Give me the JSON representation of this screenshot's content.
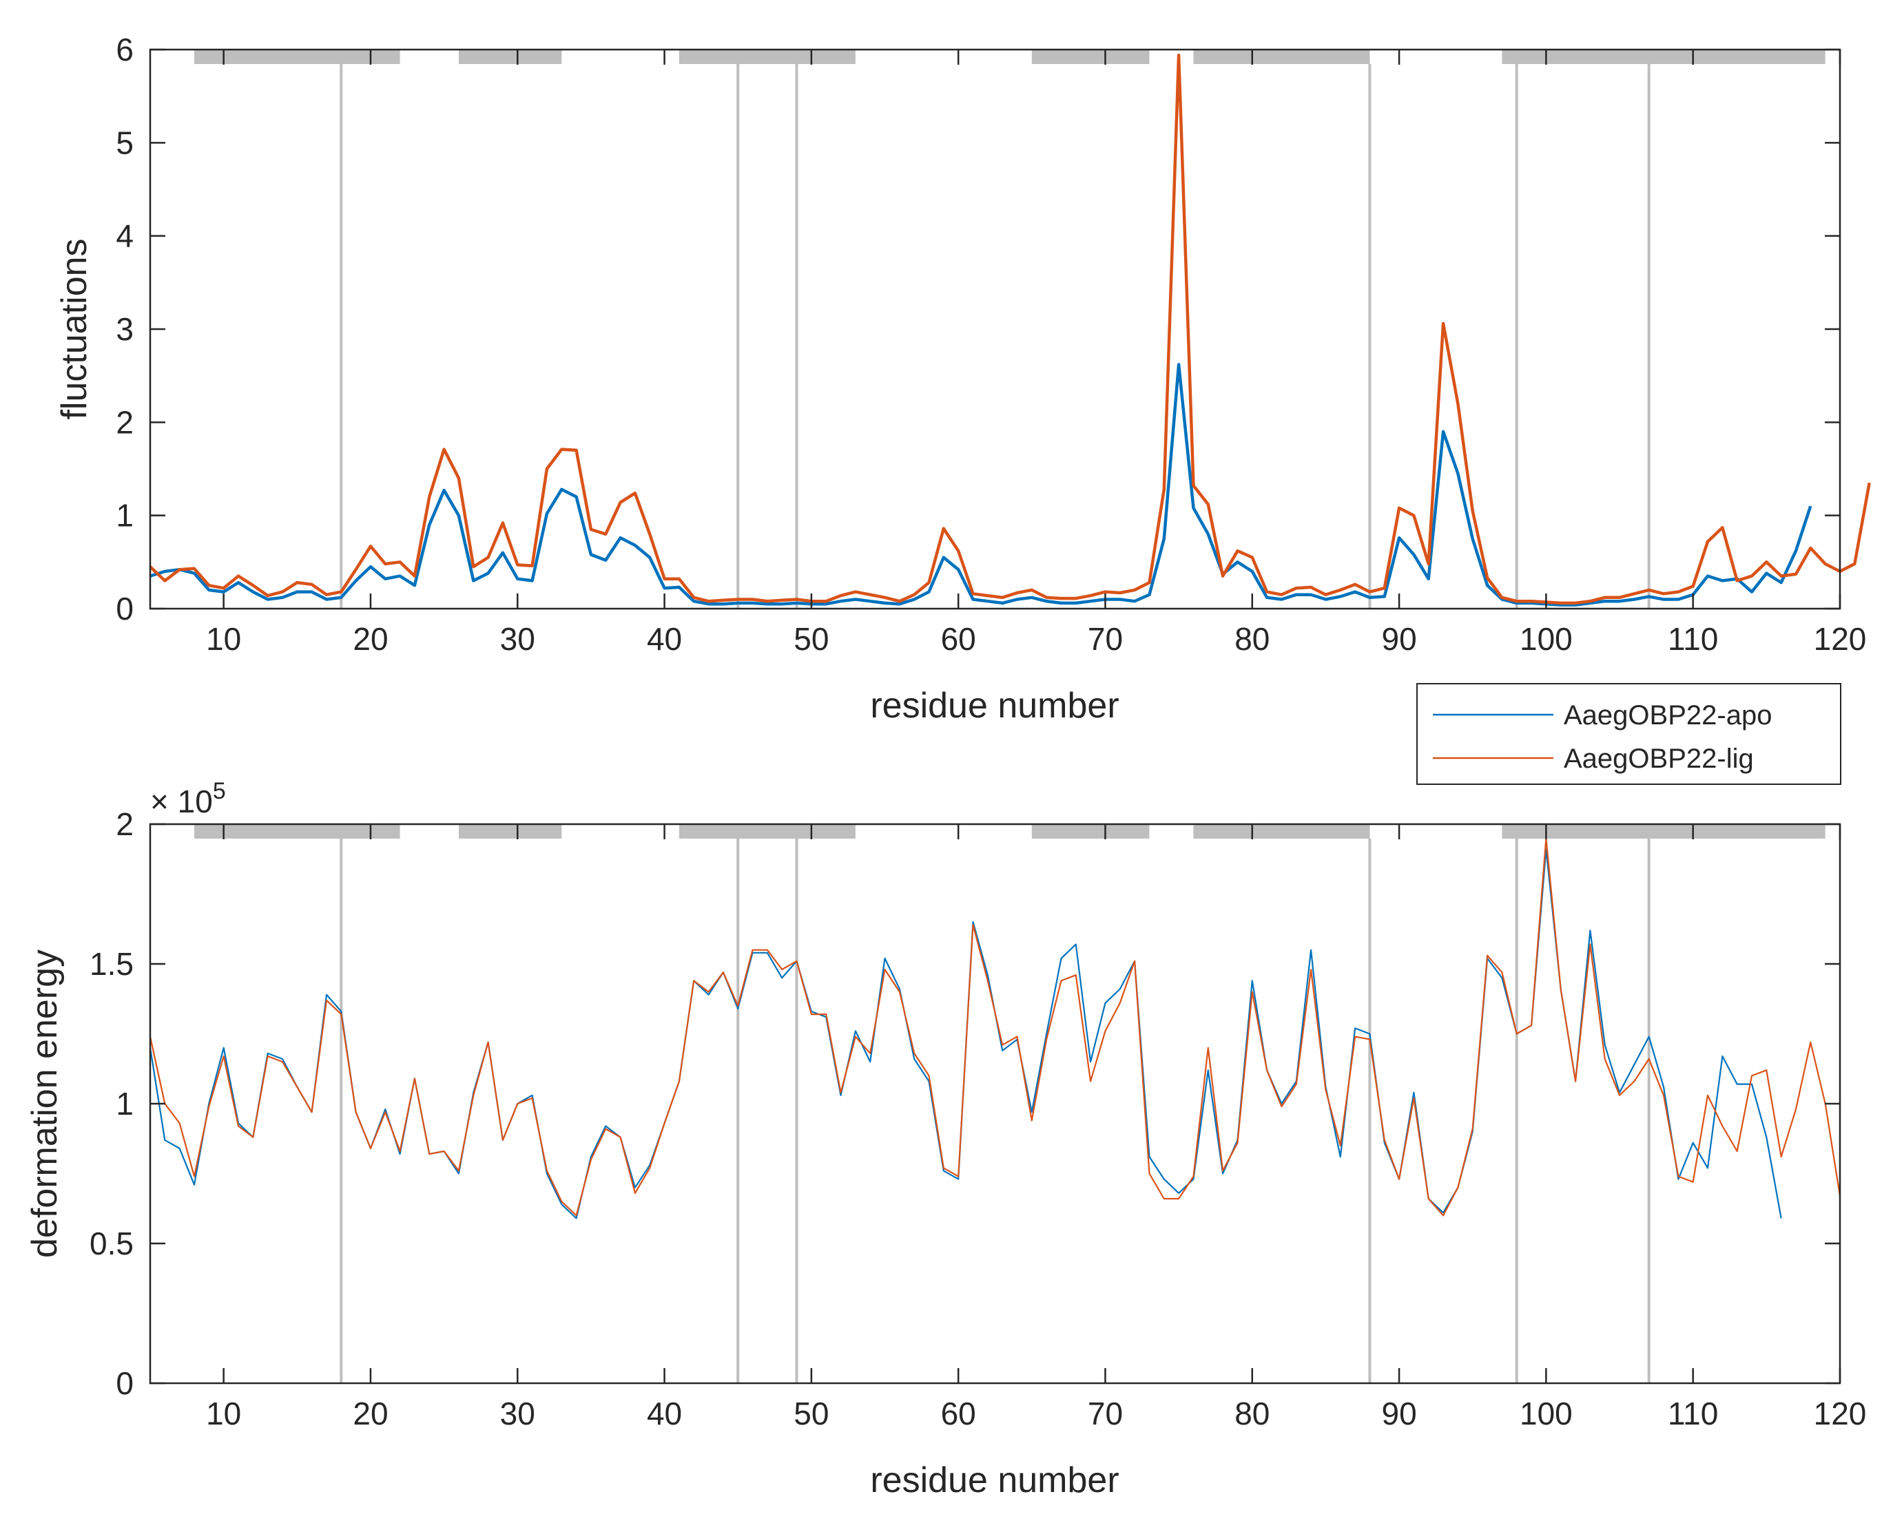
{
  "chart_data": [
    {
      "type": "line",
      "panel": "top",
      "title": "",
      "xlabel": "residue number",
      "ylabel": "fluctuations",
      "xlim": [
        5,
        120
      ],
      "ylim": [
        0,
        6
      ],
      "xticks": [
        10,
        20,
        30,
        40,
        50,
        60,
        70,
        80,
        90,
        100,
        110,
        120
      ],
      "yticks": [
        0,
        1,
        2,
        3,
        4,
        5,
        6
      ],
      "secondary_structure_bars": [
        [
          8,
          22
        ],
        [
          26,
          33
        ],
        [
          41,
          53
        ],
        [
          65,
          73
        ],
        [
          76,
          88
        ],
        [
          97,
          119
        ]
      ],
      "vertical_reference_lines": [
        18,
        45,
        49,
        88,
        98,
        107
      ],
      "series": [
        {
          "name": "AaegOBP22-apo",
          "color": "#0072BD",
          "x_start": 5,
          "values": [
            0.35,
            0.4,
            0.42,
            0.38,
            0.2,
            0.18,
            0.28,
            0.18,
            0.1,
            0.12,
            0.18,
            0.18,
            0.1,
            0.12,
            0.3,
            0.45,
            0.32,
            0.35,
            0.25,
            0.9,
            1.27,
            1.0,
            0.3,
            0.38,
            0.6,
            0.32,
            0.3,
            1.02,
            1.28,
            1.2,
            0.58,
            0.52,
            0.76,
            0.68,
            0.55,
            0.22,
            0.23,
            0.08,
            0.05,
            0.05,
            0.06,
            0.06,
            0.05,
            0.05,
            0.06,
            0.05,
            0.05,
            0.08,
            0.1,
            0.08,
            0.06,
            0.05,
            0.1,
            0.18,
            0.55,
            0.42,
            0.1,
            0.08,
            0.06,
            0.1,
            0.12,
            0.08,
            0.06,
            0.06,
            0.08,
            0.1,
            0.1,
            0.08,
            0.15,
            0.75,
            2.62,
            1.08,
            0.8,
            0.37,
            0.5,
            0.4,
            0.12,
            0.1,
            0.15,
            0.15,
            0.1,
            0.13,
            0.18,
            0.12,
            0.13,
            0.76,
            0.58,
            0.32,
            1.9,
            1.45,
            0.75,
            0.25,
            0.1,
            0.06,
            0.06,
            0.05,
            0.04,
            0.04,
            0.06,
            0.08,
            0.08,
            0.1,
            0.13,
            0.1,
            0.1,
            0.15,
            0.35,
            0.3,
            0.32,
            0.18,
            0.38,
            0.28,
            0.62,
            1.1
          ]
        },
        {
          "name": "AaegOBP22-lig",
          "color": "#D95319",
          "x_start": 5,
          "values": [
            0.45,
            0.3,
            0.42,
            0.43,
            0.25,
            0.22,
            0.35,
            0.25,
            0.14,
            0.18,
            0.28,
            0.26,
            0.15,
            0.18,
            0.42,
            0.67,
            0.48,
            0.5,
            0.35,
            1.2,
            1.71,
            1.4,
            0.45,
            0.55,
            0.92,
            0.47,
            0.46,
            1.5,
            1.71,
            1.7,
            0.85,
            0.8,
            1.14,
            1.24,
            0.8,
            0.32,
            0.32,
            0.12,
            0.08,
            0.09,
            0.1,
            0.1,
            0.08,
            0.09,
            0.1,
            0.08,
            0.08,
            0.14,
            0.18,
            0.15,
            0.12,
            0.08,
            0.15,
            0.28,
            0.86,
            0.62,
            0.16,
            0.14,
            0.12,
            0.17,
            0.2,
            0.12,
            0.11,
            0.11,
            0.14,
            0.18,
            0.17,
            0.2,
            0.28,
            1.28,
            5.94,
            1.32,
            1.12,
            0.35,
            0.62,
            0.55,
            0.18,
            0.15,
            0.22,
            0.23,
            0.15,
            0.2,
            0.26,
            0.18,
            0.22,
            1.08,
            1.0,
            0.48,
            3.06,
            2.2,
            1.05,
            0.33,
            0.12,
            0.08,
            0.08,
            0.07,
            0.06,
            0.06,
            0.08,
            0.12,
            0.12,
            0.16,
            0.2,
            0.16,
            0.18,
            0.24,
            0.72,
            0.87,
            0.3,
            0.35,
            0.5,
            0.35,
            0.37,
            0.65,
            0.48,
            0.4,
            0.48,
            1.35
          ]
        }
      ]
    },
    {
      "type": "line",
      "panel": "bottom",
      "title": "",
      "xlabel": "residue number",
      "ylabel": "deformation energy",
      "scale_label": "× 10",
      "scale_exponent": "5",
      "xlim": [
        5,
        120
      ],
      "ylim": [
        0,
        2
      ],
      "y_scale_factor": 100000,
      "xticks": [
        10,
        20,
        30,
        40,
        50,
        60,
        70,
        80,
        90,
        100,
        110,
        120
      ],
      "yticks": [
        0,
        0.5,
        1,
        1.5,
        2
      ],
      "secondary_structure_bars": [
        [
          8,
          22
        ],
        [
          26,
          33
        ],
        [
          41,
          53
        ],
        [
          65,
          73
        ],
        [
          76,
          88
        ],
        [
          97,
          119
        ]
      ],
      "vertical_reference_lines": [
        18,
        45,
        49,
        88,
        98,
        107
      ],
      "series": [
        {
          "name": "AaegOBP22-apo",
          "color": "#0072BD",
          "x_start": 5,
          "values": [
            1.2,
            0.87,
            0.84,
            0.71,
            1.0,
            1.2,
            0.93,
            0.88,
            1.18,
            1.16,
            1.06,
            0.97,
            1.39,
            1.33,
            0.97,
            0.84,
            0.98,
            0.82,
            1.09,
            0.82,
            0.83,
            0.75,
            1.04,
            1.22,
            0.87,
            1.0,
            1.03,
            0.75,
            0.64,
            0.59,
            0.81,
            0.92,
            0.88,
            0.7,
            0.78,
            0.93,
            1.08,
            1.44,
            1.39,
            1.47,
            1.34,
            1.54,
            1.54,
            1.45,
            1.51,
            1.33,
            1.31,
            1.03,
            1.26,
            1.15,
            1.52,
            1.41,
            1.16,
            1.08,
            0.76,
            0.73,
            1.65,
            1.46,
            1.19,
            1.23,
            0.97,
            1.25,
            1.52,
            1.57,
            1.15,
            1.36,
            1.41,
            1.51,
            0.81,
            0.73,
            0.68,
            0.73,
            1.12,
            0.75,
            0.87,
            1.44,
            1.12,
            1.0,
            1.08,
            1.55,
            1.06,
            0.81,
            1.27,
            1.25,
            0.86,
            0.73,
            1.04,
            0.66,
            0.61,
            0.7,
            0.9,
            1.52,
            1.45,
            1.25,
            1.28,
            1.91,
            1.41,
            1.08,
            1.62,
            1.21,
            1.04,
            1.14,
            1.24,
            1.06,
            0.73,
            0.86,
            0.77,
            1.17,
            1.07,
            1.07,
            0.88,
            0.59
          ]
        },
        {
          "name": "AaegOBP22-lig",
          "color": "#D95319",
          "x_start": 5,
          "values": [
            1.24,
            1.0,
            0.93,
            0.74,
            0.99,
            1.17,
            0.92,
            0.88,
            1.17,
            1.15,
            1.06,
            0.97,
            1.37,
            1.32,
            0.97,
            0.84,
            0.97,
            0.83,
            1.09,
            0.82,
            0.83,
            0.76,
            1.03,
            1.22,
            0.87,
            1.0,
            1.02,
            0.76,
            0.65,
            0.6,
            0.8,
            0.91,
            0.88,
            0.68,
            0.77,
            0.93,
            1.08,
            1.44,
            1.4,
            1.47,
            1.35,
            1.55,
            1.55,
            1.48,
            1.51,
            1.32,
            1.32,
            1.04,
            1.24,
            1.18,
            1.48,
            1.4,
            1.18,
            1.1,
            0.77,
            0.74,
            1.64,
            1.44,
            1.21,
            1.24,
            0.94,
            1.23,
            1.44,
            1.46,
            1.08,
            1.26,
            1.36,
            1.51,
            0.75,
            0.66,
            0.66,
            0.74,
            1.2,
            0.76,
            0.86,
            1.4,
            1.12,
            0.99,
            1.07,
            1.48,
            1.05,
            0.85,
            1.24,
            1.23,
            0.87,
            0.73,
            1.02,
            0.66,
            0.6,
            0.7,
            0.91,
            1.53,
            1.47,
            1.25,
            1.28,
            1.95,
            1.41,
            1.08,
            1.57,
            1.16,
            1.03,
            1.08,
            1.16,
            1.03,
            0.74,
            0.72,
            1.03,
            0.92,
            0.83,
            1.1,
            1.12,
            0.81,
            0.98,
            1.22,
            1.0,
            0.67
          ]
        }
      ]
    }
  ],
  "legend": {
    "entries": [
      "AaegOBP22-apo",
      "AaegOBP22-lig"
    ]
  }
}
